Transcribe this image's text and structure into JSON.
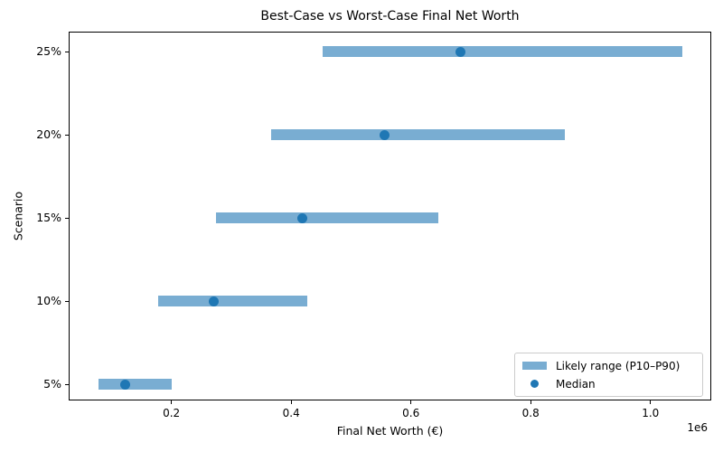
{
  "figure": {
    "title": "Best-Case vs Worst-Case Final Net Worth",
    "xlabel": "Final Net Worth (€)",
    "ylabel": "Scenario",
    "offset_text": "1e6"
  },
  "legend": {
    "range_label": "Likely range (P10–P90)",
    "median_label": "Median"
  },
  "colors": {
    "bar": "#79add2",
    "median": "#1f77b4",
    "spine": "#000000"
  },
  "chart_data": {
    "type": "bar",
    "orientation": "horizontal",
    "title": "Best-Case vs Worst-Case Final Net Worth",
    "xlabel": "Final Net Worth (€)",
    "ylabel": "Scenario",
    "categories": [
      "5%",
      "10%",
      "15%",
      "20%",
      "25%"
    ],
    "series": [
      {
        "name": "P10",
        "values": [
          78000,
          178000,
          274000,
          366000,
          452000
        ]
      },
      {
        "name": "Median",
        "values": [
          123000,
          270000,
          419000,
          556000,
          682000
        ]
      },
      {
        "name": "P90",
        "values": [
          201000,
          427000,
          646000,
          857000,
          1053000
        ]
      }
    ],
    "xlim": [
      30000,
      1103000
    ],
    "xticks": [
      200000,
      400000,
      600000,
      800000,
      1000000
    ],
    "xtick_labels": [
      "0.2",
      "0.4",
      "0.6",
      "0.8",
      "1.0"
    ],
    "x_offset": "1e6",
    "legend_entries": [
      "Likely range (P10–P90)",
      "Median"
    ],
    "legend_position": "lower right",
    "grid": false
  }
}
